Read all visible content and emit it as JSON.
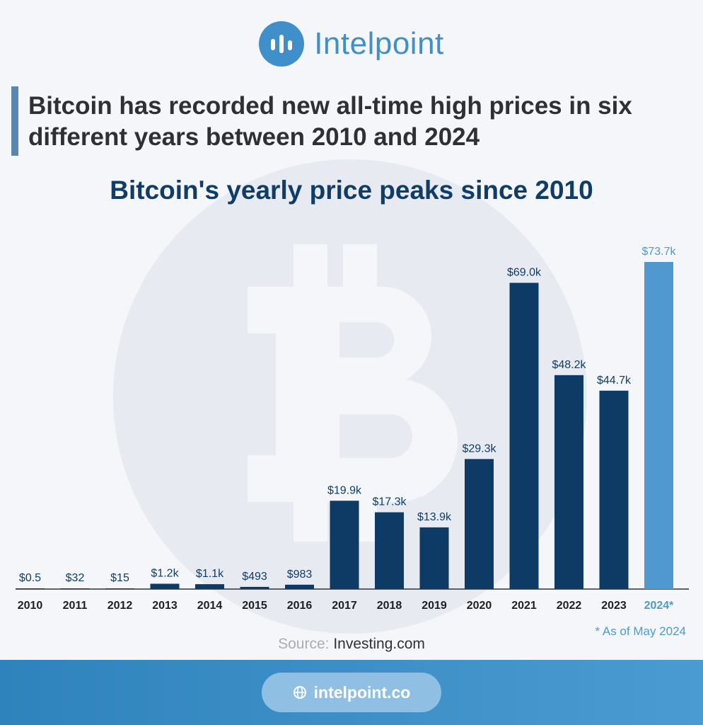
{
  "brand": {
    "name": "Intelpoint",
    "logo_icon": "bar-chart-icon",
    "color": "#3f8fcb"
  },
  "headline": "Bitcoin has recorded new all-time high prices in six different years between 2010 and 2024",
  "footnote": "* As of May 2024",
  "source": {
    "label": "Source:",
    "value": "Investing.com"
  },
  "footer": {
    "website": "intelpoint.co",
    "icon": "globe-icon"
  },
  "colors": {
    "bar": "#0e3b66",
    "bar_highlight": "#4f99d0",
    "title": "#0f3d68"
  },
  "chart_data": {
    "type": "bar",
    "title": "Bitcoin's yearly price peaks since 2010",
    "categories": [
      "2010",
      "2011",
      "2012",
      "2013",
      "2014",
      "2015",
      "2016",
      "2017",
      "2018",
      "2019",
      "2020",
      "2021",
      "2022",
      "2023",
      "2024*"
    ],
    "values": [
      0.5,
      32,
      15,
      1200,
      1100,
      493,
      983,
      19900,
      17300,
      13900,
      29300,
      69000,
      48200,
      44700,
      73700
    ],
    "labels": [
      "$0.5",
      "$32",
      "$15",
      "$1.2k",
      "$1.1k",
      "$493",
      "$983",
      "$19.9k",
      "$17.3k",
      "$13.9k",
      "$29.3k",
      "$69.0k",
      "$48.2k",
      "$44.7k",
      "$73.7k"
    ],
    "highlight_index": 14,
    "ylim": [
      0,
      73700
    ],
    "grid": false,
    "xlabel": "",
    "ylabel": ""
  }
}
